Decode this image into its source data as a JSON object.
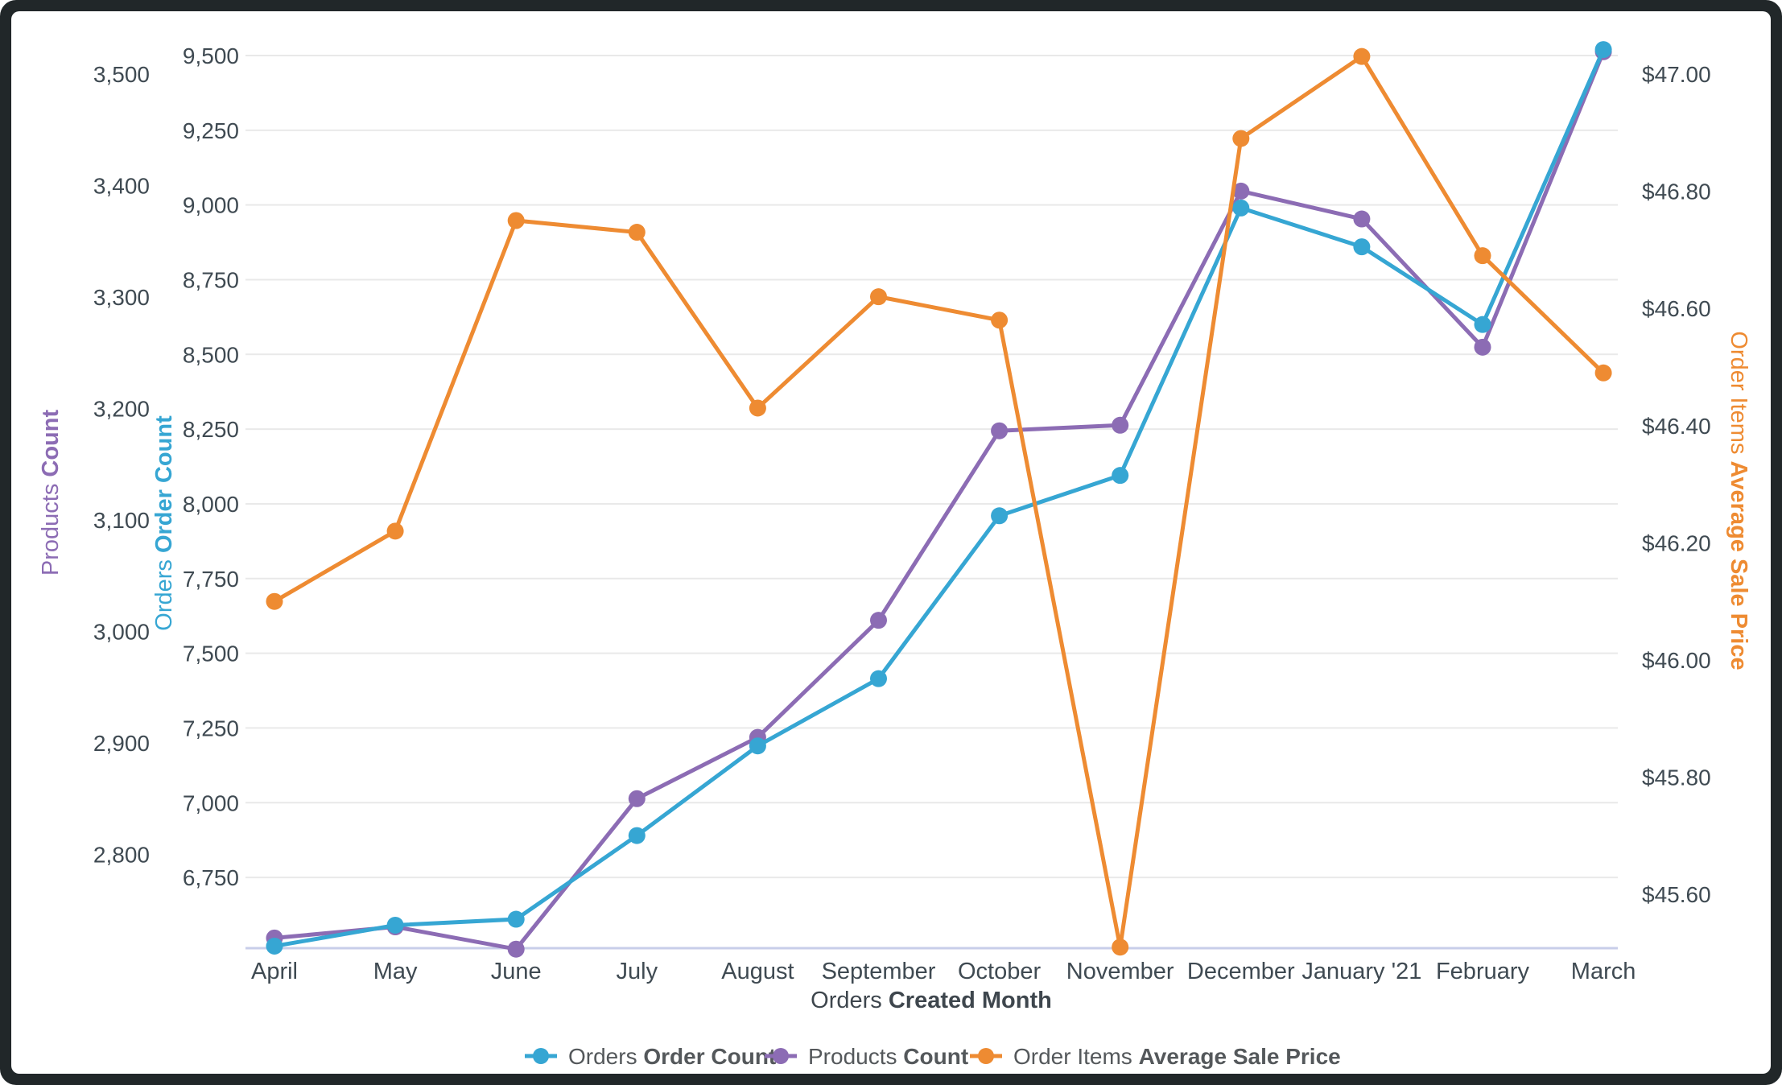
{
  "window": {
    "frame_color": "#212729",
    "card_color": "#ffffff"
  },
  "colors": {
    "orders": "#36a6d3",
    "products": "#8c6cb4",
    "price": "#ee8b32",
    "grid": "#e9e9e9",
    "axis_line": "#c8cee9",
    "tick_text": "#3f4a52"
  },
  "axes": {
    "products": {
      "title_prefix": "Products ",
      "title_bold": "Count",
      "ticks": [
        "3,500",
        "3,400",
        "3,300",
        "3,200",
        "3,100",
        "3,000",
        "2,900",
        "2,800"
      ],
      "tick_values": [
        3500,
        3400,
        3300,
        3200,
        3100,
        3000,
        2900,
        2800
      ]
    },
    "orders": {
      "title_prefix": "Orders ",
      "title_bold": "Order Count",
      "ticks": [
        "9,500",
        "9,250",
        "9,000",
        "8,750",
        "8,500",
        "8,250",
        "8,000",
        "7,750",
        "7,500",
        "7,250",
        "7,000",
        "6,750"
      ],
      "tick_values": [
        9500,
        9250,
        9000,
        8750,
        8500,
        8250,
        8000,
        7750,
        7500,
        7250,
        7000,
        6750
      ]
    },
    "price": {
      "title_prefix": "Order Items ",
      "title_bold": "Average Sale Price",
      "ticks": [
        "$47.00",
        "$46.80",
        "$46.60",
        "$46.40",
        "$46.20",
        "$46.00",
        "$45.80",
        "$45.60"
      ],
      "tick_values": [
        47.0,
        46.8,
        46.6,
        46.4,
        46.2,
        46.0,
        45.8,
        45.6
      ]
    },
    "x": {
      "title_prefix": "Orders ",
      "title_bold": "Created Month"
    }
  },
  "legend": {
    "items": [
      {
        "prefix": "Orders ",
        "bold": "Order Count",
        "color_key": "orders"
      },
      {
        "prefix": "Products ",
        "bold": "Count",
        "color_key": "products"
      },
      {
        "prefix": "Order Items ",
        "bold": "Average Sale Price",
        "color_key": "price"
      }
    ]
  },
  "chart_data": {
    "type": "line",
    "categories": [
      "April",
      "May",
      "June",
      "July",
      "August",
      "September",
      "October",
      "November",
      "December",
      "January '21",
      "February",
      "March"
    ],
    "series": [
      {
        "name": "Orders Order Count",
        "axis": "orders",
        "color_key": "orders",
        "values": [
          6520,
          6590,
          6610,
          6890,
          7190,
          7415,
          7960,
          8095,
          8990,
          8860,
          8600,
          9520
        ]
      },
      {
        "name": "Products Count",
        "axis": "products",
        "color_key": "products",
        "values": [
          2725,
          2735,
          2715,
          2850,
          2905,
          3010,
          3180,
          3185,
          3395,
          3370,
          3255,
          3520
        ]
      },
      {
        "name": "Order Items Average Sale Price",
        "axis": "price",
        "color_key": "price",
        "values": [
          46.1,
          46.22,
          46.75,
          46.73,
          46.43,
          46.62,
          46.58,
          45.51,
          46.89,
          47.03,
          46.69,
          46.49
        ]
      }
    ],
    "xlabel": "Orders Created Month",
    "ylabel_left_outer": "Products Count",
    "ylabel_left_inner": "Orders Order Count",
    "ylabel_right": "Order Items Average Sale Price",
    "axis_ranges": {
      "orders": {
        "min": 6515,
        "max": 9605,
        "tick_step": 250
      },
      "products": {
        "min": 2715,
        "max": 3545,
        "tick_step": 100
      },
      "price": {
        "min": 45.49,
        "max": 47.09,
        "tick_step": 0.2
      }
    },
    "grid": "horizontal",
    "legend_position": "bottom-center"
  }
}
